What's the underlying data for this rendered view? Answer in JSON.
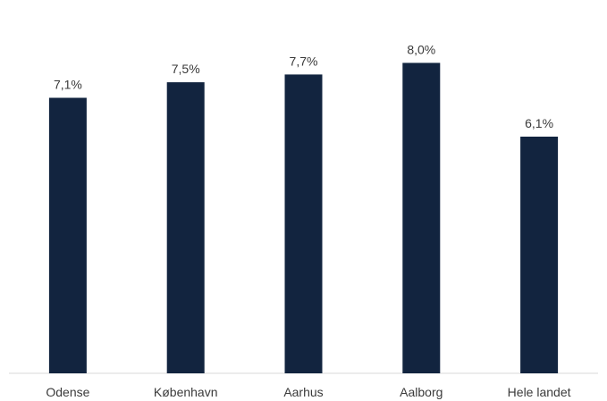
{
  "chart_data": {
    "type": "bar",
    "title": "",
    "xlabel": "",
    "ylabel": "",
    "categories": [
      "Odense",
      "København",
      "Aarhus",
      "Aalborg",
      "Hele landet"
    ],
    "values": [
      7.1,
      7.5,
      7.7,
      8.0,
      6.1
    ],
    "data_labels": [
      "7,1%",
      "7,5%",
      "7,7%",
      "8,0%",
      "6,1%"
    ],
    "ylim": [
      0,
      8.7
    ],
    "grid": false,
    "legend": "none",
    "bar_color": "#12243f"
  }
}
